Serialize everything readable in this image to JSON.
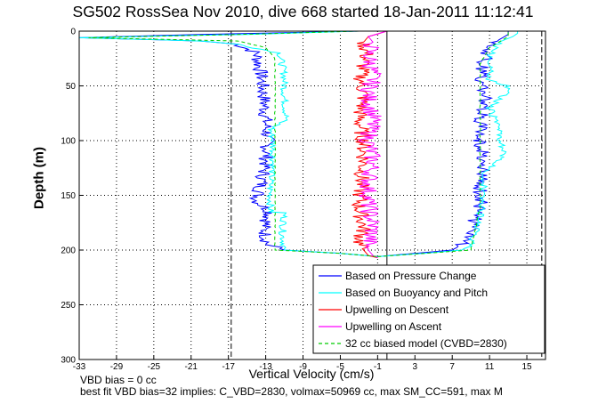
{
  "chart_data": {
    "type": "line",
    "title": "SG502 RossSea Nov 2010, dive 668 started 18-Jan-2011 11:12:41",
    "xlabel": "Vertical Velocity (cm/s)",
    "ylabel": "Depth (m)",
    "xlim": [
      -33,
      17
    ],
    "ylim": [
      300,
      0
    ],
    "y_reversed": true,
    "grid": true,
    "x_ticks": [
      -33,
      -29,
      -25,
      -21,
      -17,
      -13,
      -9,
      -5,
      -1,
      3,
      7,
      11,
      15
    ],
    "y_ticks": [
      0,
      50,
      100,
      150,
      200,
      250,
      300
    ],
    "dashed_vlines": [
      -16.7,
      16.6
    ],
    "legend_position": "bottom-right",
    "series": [
      {
        "name": "Based on Pressure Change",
        "color": "#0000ff",
        "style": "solid",
        "descent": {
          "depth": [
            0,
            3,
            6,
            9,
            12,
            20,
            40,
            60,
            80,
            100,
            120,
            140,
            155,
            165,
            180,
            195,
            200,
            203,
            206
          ],
          "w": [
            -3,
            -20,
            -33,
            -20,
            -16,
            -14,
            -13.5,
            -13.2,
            -13,
            -12.8,
            -13,
            -13.5,
            -14,
            -12.5,
            -13.2,
            -12.8,
            -11,
            -5,
            -1
          ]
        },
        "ascent": {
          "depth": [
            206,
            203,
            200,
            195,
            180,
            160,
            140,
            120,
            100,
            80,
            60,
            40,
            25,
            15,
            8,
            3,
            0
          ],
          "w": [
            -1,
            3,
            7,
            8,
            9,
            10,
            10,
            10.5,
            10,
            10,
            10.5,
            10,
            10.5,
            11,
            12,
            13,
            13
          ]
        }
      },
      {
        "name": "Based on Buoyancy and Pitch",
        "color": "#00ffff",
        "style": "solid",
        "descent": {
          "depth": [
            0,
            3,
            6,
            9,
            12,
            20,
            40,
            60,
            80,
            90,
            100,
            120,
            140,
            165,
            166,
            185,
            200,
            203,
            206
          ],
          "w": [
            -3,
            -15,
            -33,
            -20,
            -16,
            -11.5,
            -11,
            -11,
            -10.8,
            -12.5,
            -12.2,
            -12.2,
            -12.5,
            -12.5,
            -11,
            -11.2,
            -11,
            -5,
            -1
          ]
        },
        "ascent": {
          "depth": [
            206,
            203,
            200,
            195,
            170,
            150,
            130,
            115,
            90,
            70,
            55,
            50,
            45,
            20,
            10,
            5,
            2,
            0
          ],
          "w": [
            -1,
            4,
            8,
            9,
            10,
            10.2,
            10.5,
            12.5,
            12,
            11,
            13,
            13,
            11,
            11.2,
            12,
            13.5,
            14,
            14
          ]
        }
      },
      {
        "name": "Upwelling on Descent",
        "color": "#ff0000",
        "style": "solid",
        "trace": {
          "depth": [
            0,
            5,
            10,
            20,
            40,
            60,
            80,
            100,
            120,
            140,
            160,
            180,
            195,
            200,
            205,
            207
          ],
          "w": [
            0,
            -2,
            -2.5,
            -2.2,
            -2.8,
            -2.5,
            -3,
            -2.5,
            -2.5,
            -2.8,
            -3,
            -2.5,
            -3,
            -2.5,
            -2,
            -1
          ]
        }
      },
      {
        "name": "Upwelling on Ascent",
        "color": "#ff00ff",
        "style": "solid",
        "trace": {
          "depth": [
            0,
            5,
            10,
            20,
            40,
            60,
            80,
            100,
            120,
            140,
            160,
            180,
            195,
            200,
            205,
            207
          ],
          "w": [
            0,
            -2,
            -1.5,
            -2,
            -1.5,
            -2,
            -1.5,
            -2,
            -1.5,
            -2,
            -2,
            -1.5,
            -2,
            -2,
            -1.5,
            -1
          ]
        }
      },
      {
        "name": "32 cc biased model (CVBD=2830)",
        "color": "#00cc00",
        "style": "dashed",
        "descent": {
          "depth": [
            0,
            3,
            6,
            9,
            15,
            25,
            60,
            100,
            140,
            160,
            200,
            203,
            206
          ],
          "w": [
            -3,
            -16,
            -32,
            -16,
            -13,
            -12,
            -12,
            -12,
            -12,
            -12,
            -12,
            -5,
            -1
          ]
        },
        "ascent": {
          "depth": [
            206,
            203,
            200,
            160,
            100,
            60,
            30,
            15,
            5,
            0
          ],
          "w": [
            -1,
            4,
            9,
            10,
            10,
            10,
            10,
            11,
            13,
            13
          ]
        }
      }
    ]
  },
  "footer": {
    "line1": "VBD bias = 0 cc",
    "line2": "best fit VBD bias=32 implies: C_VBD=2830, volmax=50969 cc, max SM_CC=591, max M"
  }
}
